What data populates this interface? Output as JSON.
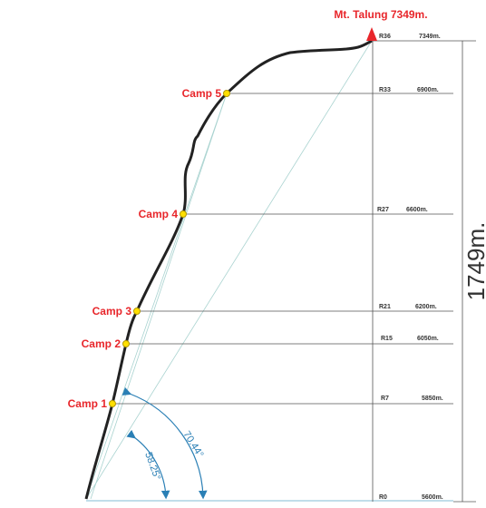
{
  "summit": {
    "label": "Mt. Talung 7349m."
  },
  "height_label": "1749m.",
  "camps": [
    {
      "label": "Camp 5"
    },
    {
      "label": "Camp 4"
    },
    {
      "label": "Camp 3"
    },
    {
      "label": "Camp 2"
    },
    {
      "label": "Camp 1"
    }
  ],
  "levels": [
    {
      "rope": "R36",
      "altitude": "7349m."
    },
    {
      "rope": "R33",
      "altitude": "6900m."
    },
    {
      "rope": "R27",
      "altitude": "6600m."
    },
    {
      "rope": "R21",
      "altitude": "6200m."
    },
    {
      "rope": "R15",
      "altitude": "6050m."
    },
    {
      "rope": "R7",
      "altitude": "5850m."
    },
    {
      "rope": "R0",
      "altitude": "5600m."
    }
  ],
  "angles": [
    "70.44°",
    "58.25°"
  ]
}
